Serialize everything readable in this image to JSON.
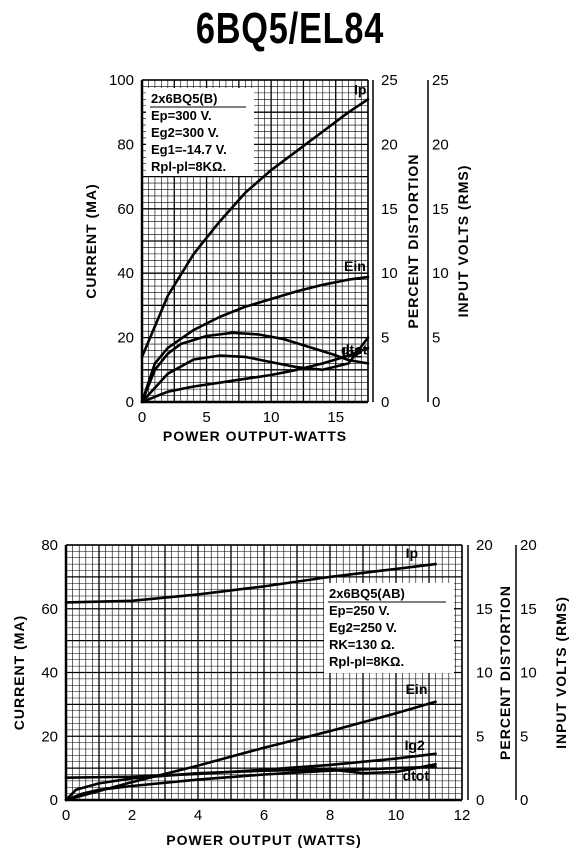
{
  "title": "6BQ5/EL84",
  "chart_data": [
    {
      "type": "line",
      "xlabel": "POWER OUTPUT-WATTS",
      "ylabel": "CURRENT (MA)",
      "y2label": "PERCENT DISTORTION",
      "y3label": "INPUT VOLTS (RMS)",
      "xlim": [
        0,
        17.5
      ],
      "ylim": [
        0,
        100
      ],
      "y2lim": [
        0,
        25
      ],
      "y3lim": [
        0,
        25
      ],
      "xticks": [
        "0",
        "5",
        "10",
        "15"
      ],
      "yticks": [
        "0",
        "20",
        "40",
        "60",
        "80",
        "100"
      ],
      "y2ticks": [
        "0",
        "5",
        "10",
        "15",
        "20",
        "25"
      ],
      "y3ticks": [
        "0",
        "5",
        "10",
        "15",
        "20",
        "25"
      ],
      "grid": true,
      "conditions": [
        "2x6BQ5(B)",
        "Ep=300 V.",
        "Eg2=300 V.",
        "Eg1=-14.7 V.",
        "Rpl-pl=8KΩ."
      ],
      "series": [
        {
          "name": "Ip",
          "axis": "left",
          "x": [
            0,
            2,
            4,
            6,
            8,
            10,
            12,
            14,
            16,
            17.5
          ],
          "values": [
            14,
            33,
            46,
            56,
            65,
            72,
            78,
            84,
            90,
            94
          ]
        },
        {
          "name": "Ein",
          "axis": "right",
          "x": [
            0,
            1,
            2,
            4,
            6,
            8,
            10,
            12,
            14,
            16,
            17.5
          ],
          "values": [
            0,
            3,
            4.2,
            5.6,
            6.6,
            7.4,
            8,
            8.6,
            9.1,
            9.5,
            9.7
          ]
        },
        {
          "name": "Ig2",
          "axis": "left",
          "x": [
            0,
            1,
            2,
            3,
            5,
            7,
            9,
            11,
            13,
            15,
            16,
            17.5
          ],
          "values": [
            0,
            10,
            15,
            18,
            20.5,
            21.5,
            21,
            19.5,
            17,
            14.5,
            13,
            12
          ]
        },
        {
          "name": "dtot",
          "axis": "right",
          "x": [
            0,
            2,
            4,
            6,
            8,
            10,
            12,
            14,
            16,
            17.5
          ],
          "values": [
            0,
            2.2,
            3.3,
            3.6,
            3.5,
            3.1,
            2.7,
            2.5,
            3,
            5
          ]
        },
        {
          "name": "",
          "axis": "right",
          "x": [
            0,
            2,
            4,
            6,
            8,
            10,
            12,
            14,
            16,
            17.5
          ],
          "values": [
            0,
            0.8,
            1.2,
            1.5,
            1.8,
            2.1,
            2.5,
            3,
            3.6,
            4.2
          ]
        }
      ]
    },
    {
      "type": "line",
      "xlabel": "POWER OUTPUT (WATTS)",
      "ylabel": "CURRENT (MA)",
      "y2label": "PERCENT DISTORTION",
      "y3label": "INPUT VOLTS (RMS)",
      "xlim": [
        0,
        12
      ],
      "ylim": [
        0,
        80
      ],
      "y2lim": [
        0,
        20
      ],
      "y3lim": [
        0,
        20
      ],
      "xticks": [
        "0",
        "2",
        "4",
        "6",
        "8",
        "10",
        "12"
      ],
      "yticks": [
        "0",
        "20",
        "40",
        "60",
        "80"
      ],
      "y2ticks": [
        "0",
        "5",
        "10",
        "15",
        "20"
      ],
      "y3ticks": [
        "0",
        "5",
        "10",
        "15",
        "20"
      ],
      "grid": true,
      "conditions": [
        "2x6BQ5(AB)",
        "Ep=250 V.",
        "Eg2=250 V.",
        "RK=130 Ω.",
        "Rpl-pl=8KΩ."
      ],
      "series": [
        {
          "name": "Ip",
          "axis": "left",
          "x": [
            0,
            2,
            4,
            6,
            8,
            10,
            11.2
          ],
          "values": [
            62,
            62.5,
            64.5,
            67,
            70,
            72.5,
            74
          ]
        },
        {
          "name": "Ein",
          "axis": "right",
          "x": [
            0,
            2,
            4,
            6,
            8,
            10,
            11.2
          ],
          "values": [
            0,
            1.4,
            2.7,
            4.1,
            5.4,
            6.8,
            7.7
          ]
        },
        {
          "name": "Ig2",
          "axis": "left",
          "x": [
            0,
            2,
            4,
            6,
            8,
            10,
            11.2
          ],
          "values": [
            7,
            7.3,
            8.2,
            9.5,
            11,
            13,
            14.5
          ]
        },
        {
          "name": "dtot",
          "axis": "right",
          "x": [
            0,
            0.3,
            1,
            2,
            4,
            6,
            8,
            9,
            10,
            11.2
          ],
          "values": [
            0,
            0.8,
            1.3,
            1.7,
            2.1,
            2.3,
            2.4,
            2.1,
            2.2,
            2.8
          ]
        },
        {
          "name": "",
          "axis": "right",
          "x": [
            0,
            0.5,
            1,
            2,
            4,
            6,
            8,
            10,
            11.2
          ],
          "values": [
            0,
            0.5,
            0.8,
            1.1,
            1.6,
            2,
            2.3,
            2.5,
            2.6
          ]
        }
      ]
    }
  ]
}
